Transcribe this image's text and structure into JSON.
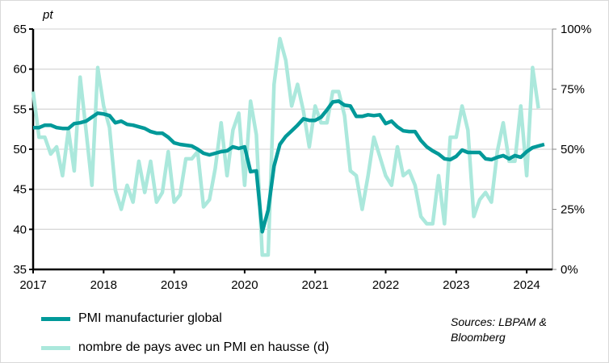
{
  "chart_data": {
    "type": "line",
    "left_axis": {
      "unit_label": "pt",
      "ylim": [
        35,
        65
      ],
      "ticks": [
        "35",
        "40",
        "45",
        "50",
        "55",
        "60",
        "65"
      ]
    },
    "right_axis": {
      "ylim": [
        0,
        100
      ],
      "ticks": [
        "0%",
        "25%",
        "50%",
        "75%",
        "100%"
      ]
    },
    "x_ticks": [
      "2017",
      "2018",
      "2019",
      "2020",
      "2021",
      "2022",
      "2023",
      "2024"
    ],
    "x_start": "2017-01",
    "grid": "horizontal",
    "legend_placement": "bottom-left",
    "series": [
      {
        "name": "PMI manufacturier global",
        "axis": "left",
        "color": "#009999",
        "values": [
          52.7,
          52.7,
          53.0,
          53.0,
          52.7,
          52.6,
          52.6,
          53.2,
          53.3,
          53.5,
          54.0,
          54.5,
          54.4,
          54.2,
          53.3,
          53.5,
          53.1,
          53.0,
          52.8,
          52.6,
          52.2,
          52.0,
          52.0,
          51.5,
          50.8,
          50.6,
          50.5,
          50.4,
          50.0,
          49.5,
          49.3,
          49.5,
          49.7,
          49.8,
          50.3,
          50.1,
          50.3,
          47.2,
          47.3,
          39.7,
          42.4,
          47.9,
          50.6,
          51.6,
          52.3,
          53.0,
          53.8,
          53.6,
          53.6,
          54.0,
          54.9,
          55.9,
          56.0,
          55.5,
          55.4,
          54.1,
          54.1,
          54.3,
          54.2,
          54.3,
          53.2,
          53.5,
          52.8,
          52.3,
          52.2,
          52.2,
          51.1,
          50.3,
          49.8,
          49.4,
          48.8,
          48.7,
          49.1,
          49.9,
          49.6,
          49.6,
          49.6,
          48.8,
          48.7,
          49.0,
          49.2,
          48.8,
          49.2,
          49.0,
          49.7,
          50.2,
          50.4,
          50.6
        ]
      },
      {
        "name": "nombre de pays avec un PMI en hausse (d)",
        "axis": "right",
        "color": "#abe8dc",
        "values": [
          74,
          55,
          55,
          48,
          51,
          39,
          58,
          41,
          80,
          58,
          35,
          84,
          68,
          59,
          33,
          25,
          35,
          28,
          45,
          32,
          45,
          28,
          32,
          49,
          28,
          31,
          46,
          46,
          49,
          26,
          29,
          42,
          61,
          39,
          58,
          65,
          35,
          70,
          56,
          6,
          6,
          77,
          96,
          87,
          68,
          77,
          66,
          51,
          68,
          61,
          61,
          74,
          74,
          64,
          41,
          39,
          25,
          39,
          55,
          47,
          39,
          35,
          51,
          39,
          41,
          35,
          22,
          19,
          19,
          39,
          19,
          55,
          55,
          68,
          58,
          22,
          29,
          32,
          28,
          49,
          61,
          45,
          45,
          68,
          39,
          84,
          67
        ]
      }
    ]
  },
  "sources": [
    "Sources: LBPAM &",
    "Bloomberg"
  ]
}
